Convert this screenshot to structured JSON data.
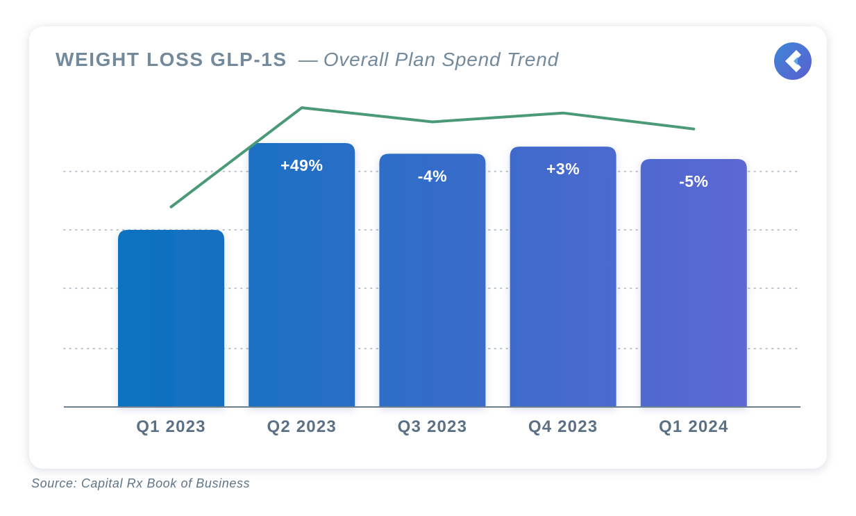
{
  "header": {
    "title": "WEIGHT LOSS GLP-1S",
    "separator": "—",
    "subtitle": "Overall Plan Spend Trend"
  },
  "logo": {
    "icon": "capital-rx-logo-icon",
    "color": "#4f6fd6"
  },
  "chart_data": {
    "type": "bar",
    "title": "WEIGHT LOSS GLP-1S — Overall Plan Spend Trend",
    "categories": [
      "Q1 2023",
      "Q2 2023",
      "Q3 2023",
      "Q4 2023",
      "Q1 2024"
    ],
    "values": [
      100,
      149,
      143,
      147,
      140
    ],
    "bar_labels": [
      "",
      "+49%",
      "-4%",
      "+3%",
      "-5%"
    ],
    "line_values": [
      113,
      169,
      161,
      166,
      157
    ],
    "xlabel": "",
    "ylabel": "",
    "ylim": [
      0,
      200
    ],
    "grid": true,
    "colors": {
      "bar_start": "#0a72bf",
      "bar_end": "#5d67d3",
      "line": "#4a9a77",
      "axis": "#6c7f90",
      "grid": "#b9c3cc",
      "tick_label": "#5b7084",
      "bar_label": "#ffffff"
    }
  },
  "footer": {
    "source": "Source: Capital Rx Book of Business"
  }
}
